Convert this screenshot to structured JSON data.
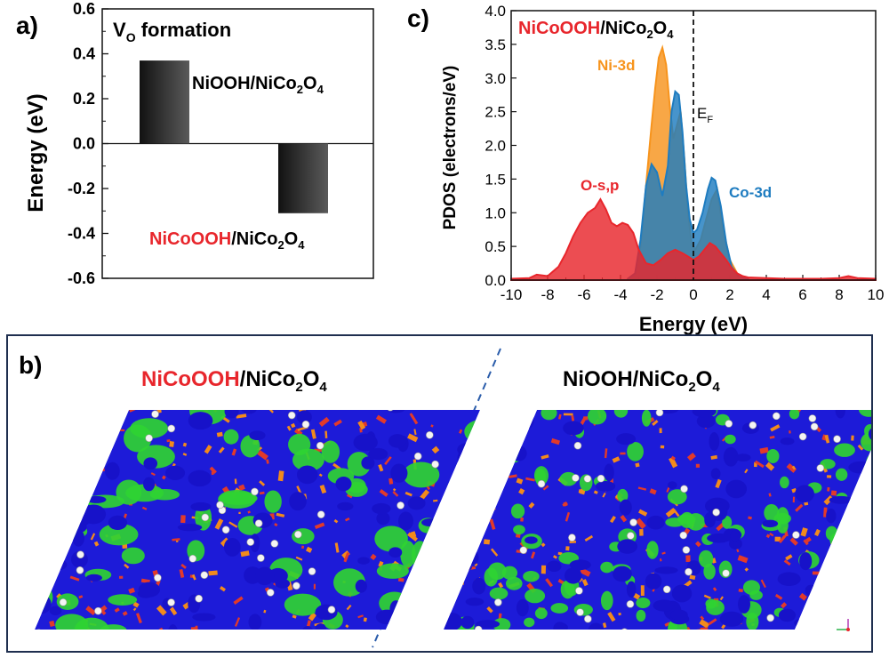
{
  "panel_a": {
    "label": "a)",
    "ylabel": "Energy (eV)",
    "annotation": {
      "main": "V",
      "sub": "O",
      "tail": " formation"
    },
    "chart_data": {
      "type": "bar",
      "categories": [
        "NiOOH/NiCo2O4",
        "NiCoOOH/NiCo2O4"
      ],
      "values": [
        0.37,
        -0.31
      ],
      "ylim": [
        -0.6,
        0.6
      ],
      "yticks": [
        "0.6",
        "0.4",
        "0.2",
        "0.0",
        "-0.2",
        "-0.4",
        "-0.6"
      ],
      "ytick_values": [
        0.6,
        0.4,
        0.2,
        0.0,
        -0.2,
        -0.4,
        -0.6
      ],
      "bar_color": "#2b2b2b"
    },
    "label_niooh": {
      "a": "NiOOH/NiCo",
      "b": "2",
      "c": "O",
      "d": "4"
    },
    "label_nicoooh": {
      "red": "NiCoOOH",
      "a": "/NiCo",
      "b": "2",
      "c": "O",
      "d": "4"
    }
  },
  "panel_c": {
    "label": "c)",
    "title": {
      "red": "NiCoOOH",
      "a": "/NiCo",
      "b": "2",
      "c": "O",
      "d": "4"
    },
    "chart_data": {
      "type": "area",
      "xlabel": "Energy (eV)",
      "ylabel": "PDOS (electrons/eV)",
      "xlim": [
        -10,
        10
      ],
      "ylim": [
        0,
        4.0
      ],
      "xticks": [
        "-10",
        "-8",
        "-6",
        "-4",
        "-2",
        "0",
        "2",
        "4",
        "6",
        "8",
        "10"
      ],
      "xtick_values": [
        -10,
        -8,
        -6,
        -4,
        -2,
        0,
        2,
        4,
        6,
        8,
        10
      ],
      "yticks": [
        "0.0",
        "0.5",
        "1.0",
        "1.5",
        "2.0",
        "2.5",
        "3.0",
        "3.5",
        "4.0"
      ],
      "ytick_values": [
        0,
        0.5,
        1.0,
        1.5,
        2.0,
        2.5,
        3.0,
        3.5,
        4.0
      ],
      "fermi_label": {
        "main": "E",
        "sub": "F"
      },
      "series": [
        {
          "name": "O-s,p",
          "color": "#e8262c",
          "x": [
            -10,
            -9,
            -8.6,
            -8,
            -7.4,
            -7,
            -6.6,
            -6.2,
            -5.8,
            -5.4,
            -5.1,
            -4.8,
            -4.5,
            -4.2,
            -3.9,
            -3.6,
            -3.3,
            -3.0,
            -2.6,
            -2.2,
            -1.8,
            -1.4,
            -1.0,
            -0.6,
            -0.3,
            0,
            0.3,
            0.6,
            0.9,
            1.2,
            1.5,
            1.8,
            2.1,
            2.4,
            2.7,
            3,
            4,
            5,
            6,
            7,
            8,
            8.5,
            9,
            10
          ],
          "y": [
            0.02,
            0.03,
            0.08,
            0.06,
            0.2,
            0.4,
            0.65,
            0.85,
            1.0,
            1.07,
            1.2,
            1.05,
            0.85,
            0.8,
            0.85,
            0.82,
            0.7,
            0.45,
            0.25,
            0.22,
            0.3,
            0.4,
            0.45,
            0.4,
            0.35,
            0.3,
            0.35,
            0.45,
            0.55,
            0.5,
            0.4,
            0.3,
            0.18,
            0.1,
            0.06,
            0.04,
            0.03,
            0.02,
            0.02,
            0.02,
            0.03,
            0.06,
            0.03,
            0.02
          ]
        },
        {
          "name": "Ni-3d",
          "color": "#f7941d",
          "x": [
            -3.6,
            -3.2,
            -2.9,
            -2.6,
            -2.3,
            -2.1,
            -1.9,
            -1.7,
            -1.5,
            -1.3,
            -1.1,
            -0.9,
            -0.7,
            -0.5,
            -0.3,
            -0.1,
            0.1,
            0.4,
            0.7,
            1.0,
            1.3,
            1.6,
            2.0,
            2.5
          ],
          "y": [
            0.02,
            0.1,
            0.5,
            1.4,
            2.3,
            2.85,
            3.3,
            3.45,
            3.2,
            2.6,
            2.1,
            2.3,
            2.5,
            1.8,
            1.0,
            0.55,
            0.45,
            0.6,
            0.9,
            1.2,
            1.35,
            0.8,
            0.3,
            0.05
          ]
        },
        {
          "name": "Co-3d",
          "color": "#1e7cc0",
          "x": [
            -3.6,
            -3.2,
            -2.9,
            -2.6,
            -2.3,
            -2.0,
            -1.7,
            -1.4,
            -1.2,
            -1.0,
            -0.8,
            -0.6,
            -0.4,
            -0.2,
            0.0,
            0.2,
            0.5,
            0.8,
            1.0,
            1.2,
            1.5,
            1.8,
            2.1,
            2.5,
            3.0
          ],
          "y": [
            0.02,
            0.1,
            0.6,
            1.4,
            1.72,
            1.6,
            1.25,
            1.7,
            2.5,
            2.8,
            2.75,
            2.2,
            1.4,
            0.9,
            0.7,
            0.75,
            1.0,
            1.35,
            1.52,
            1.48,
            1.1,
            0.55,
            0.2,
            0.05,
            0.02
          ]
        }
      ],
      "labels": {
        "ni": "Ni-3d",
        "osp": "O-s,p",
        "co": "Co-3d"
      }
    }
  },
  "panel_b": {
    "label": "b)",
    "left_title": {
      "red": "NiCoOOH",
      "a": "/NiCo",
      "b": "2",
      "c": "O",
      "d": "4"
    },
    "right_title": {
      "a": "NiOOH/NiCo",
      "b": "2",
      "c": "O",
      "d": "4"
    }
  }
}
